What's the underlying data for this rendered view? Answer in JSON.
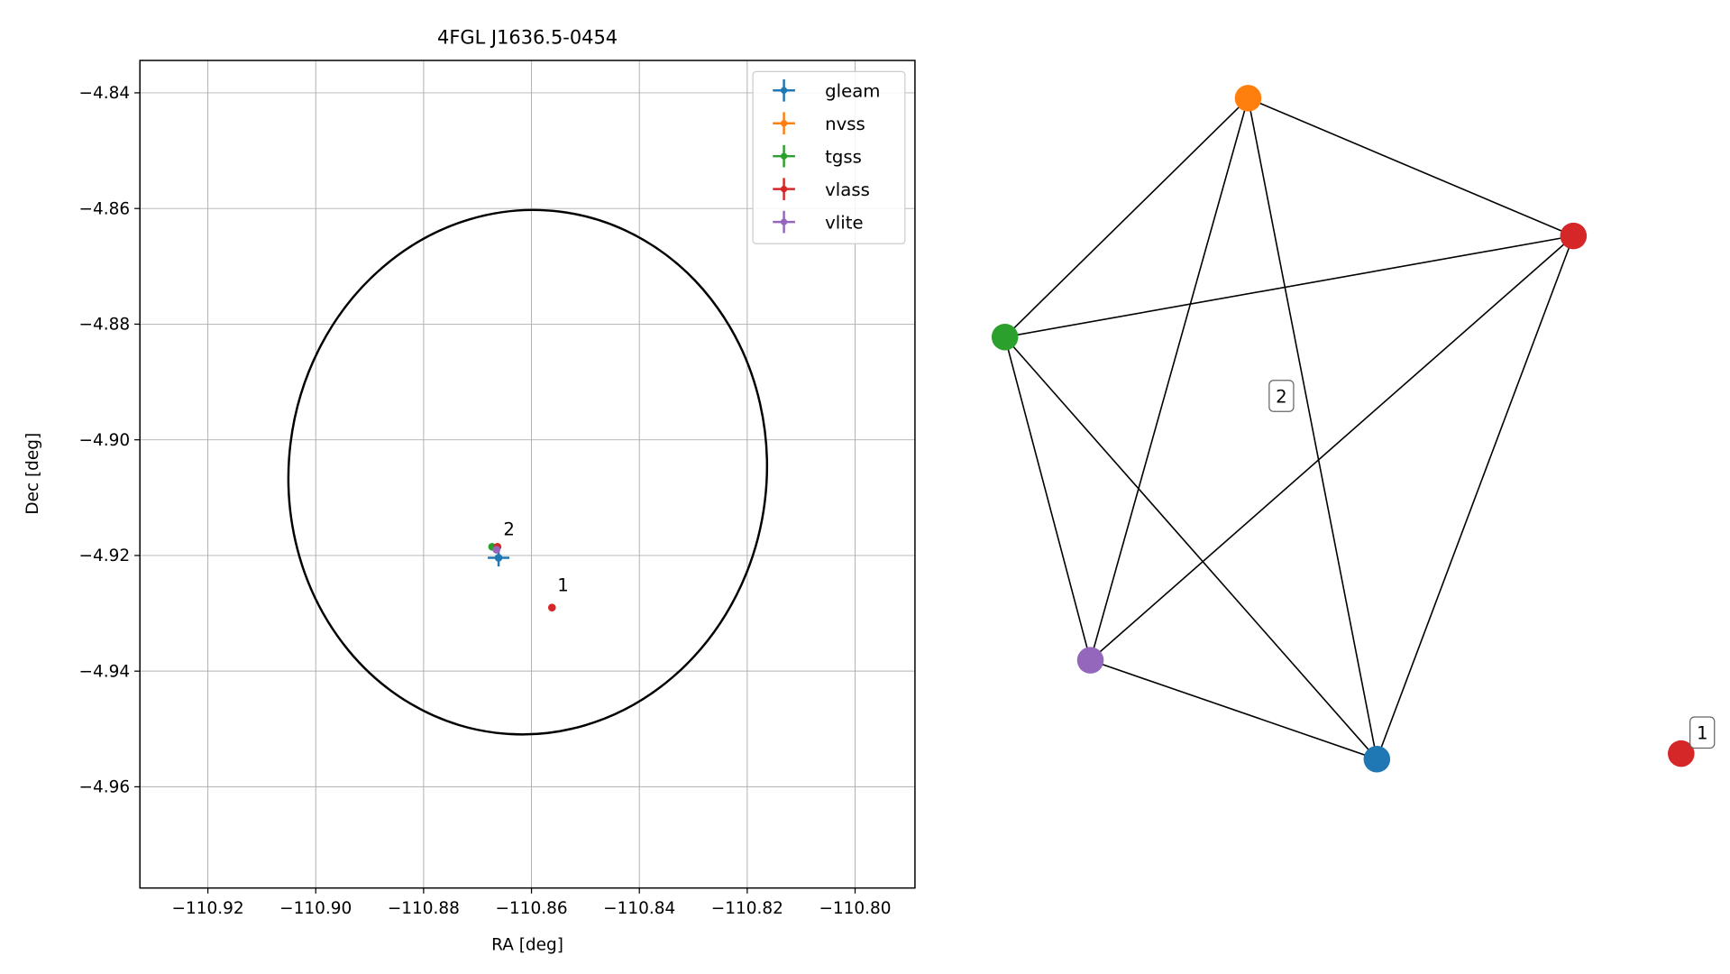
{
  "chart_data": [
    {
      "type": "scatter",
      "title": "4FGL J1636.5-0454",
      "x_label": "RA [deg]",
      "y_label": "Dec [deg]",
      "xlim": [
        -110.9326,
        -110.7889
      ],
      "ylim": [
        -4.9775,
        -4.8344
      ],
      "xticks": [
        {
          "value": -110.92,
          "label": "−110.92"
        },
        {
          "value": -110.9,
          "label": "−110.90"
        },
        {
          "value": -110.88,
          "label": "−110.88"
        },
        {
          "value": -110.86,
          "label": "−110.86"
        },
        {
          "value": -110.84,
          "label": "−110.84"
        },
        {
          "value": -110.82,
          "label": "−110.82"
        },
        {
          "value": -110.8,
          "label": "−110.80"
        }
      ],
      "yticks": [
        {
          "value": -4.84,
          "label": "−4.84"
        },
        {
          "value": -4.86,
          "label": "−4.86"
        },
        {
          "value": -4.88,
          "label": "−4.88"
        },
        {
          "value": -4.9,
          "label": "−4.90"
        },
        {
          "value": -4.92,
          "label": "−4.92"
        },
        {
          "value": -4.94,
          "label": "−4.94"
        },
        {
          "value": -4.96,
          "label": "−4.96"
        }
      ],
      "grid": true,
      "legend": "upper right",
      "ellipse": {
        "x": -110.8607,
        "y": -4.9056,
        "rx": 0.0443,
        "ry": 0.0454,
        "angle": 7
      },
      "series": [
        {
          "name": "gleam",
          "color": "#1f77b4",
          "x": [
            -110.8661
          ],
          "y": [
            -4.9204
          ],
          "xerr": [
            0.002
          ],
          "yerr": [
            0.0015
          ]
        },
        {
          "name": "nvss",
          "color": "#ff7f0e",
          "x": [
            -110.8665
          ],
          "y": [
            -4.9188
          ],
          "xerr": [
            0.0003
          ],
          "yerr": [
            0.0003
          ]
        },
        {
          "name": "tgss",
          "color": "#2ca02c",
          "x": [
            -110.8673
          ],
          "y": [
            -4.9185
          ],
          "xerr": [
            0.0003
          ],
          "yerr": [
            0.0003
          ]
        },
        {
          "name": "vlass",
          "color": "#d62728",
          "x": [
            -110.8663,
            -110.8562
          ],
          "y": [
            -4.9185,
            -4.929
          ],
          "xerr": [
            0.0001,
            0.0001
          ],
          "yerr": [
            0.0001,
            0.0001
          ]
        },
        {
          "name": "vlite",
          "color": "#9467bd",
          "x": [
            -110.8665
          ],
          "y": [
            -4.919
          ],
          "xerr": [
            0.0004
          ],
          "yerr": [
            0.0004
          ]
        }
      ],
      "annotations": [
        {
          "text": "2",
          "x": -110.8652,
          "y": -4.9165
        },
        {
          "text": "1",
          "x": -110.8552,
          "y": -4.9262
        }
      ]
    },
    {
      "type": "network",
      "nodes": [
        {
          "color": "#1f77b4"
        },
        {
          "color": "#ff7f0e"
        },
        {
          "color": "#2ca02c"
        },
        {
          "color": "#d62728"
        },
        {
          "color": "#9467bd"
        },
        {
          "color": "#d62728"
        }
      ],
      "edges": [
        [
          1,
          2
        ],
        [
          1,
          3
        ],
        [
          1,
          4
        ],
        [
          1,
          0
        ],
        [
          2,
          3
        ],
        [
          2,
          4
        ],
        [
          2,
          0
        ],
        [
          3,
          4
        ],
        [
          3,
          0
        ],
        [
          4,
          0
        ]
      ],
      "groups": [
        {
          "label": "2",
          "nodes": [
            0,
            1,
            2,
            3,
            4
          ]
        },
        {
          "label": "1",
          "nodes": [
            5
          ]
        }
      ]
    }
  ]
}
